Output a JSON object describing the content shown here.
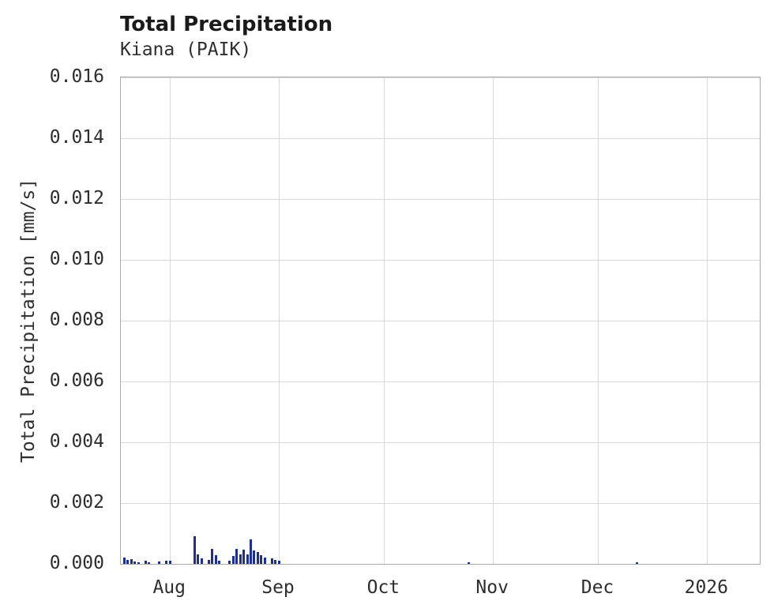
{
  "chart_data": {
    "type": "bar",
    "title": "Total Precipitation",
    "subtitle": "Kiana (PAIK)",
    "xlabel": "",
    "ylabel": "Total Precipitation [mm/s]",
    "ylim": [
      0,
      0.016
    ],
    "yticks": [
      0.0,
      0.002,
      0.004,
      0.006,
      0.008,
      0.01,
      0.012,
      0.014,
      0.016
    ],
    "ytick_decimals": 3,
    "grid": true,
    "legend_position": "none",
    "bar_color": "#1e2f8f",
    "x_domain": [
      "2025-07-18",
      "2026-01-16"
    ],
    "xticks": [
      {
        "date": "2025-08-01",
        "label": "Aug"
      },
      {
        "date": "2025-09-01",
        "label": "Sep"
      },
      {
        "date": "2025-10-01",
        "label": "Oct"
      },
      {
        "date": "2025-11-01",
        "label": "Nov"
      },
      {
        "date": "2025-12-01",
        "label": "Dec"
      },
      {
        "date": "2026-01-01",
        "label": "2026"
      }
    ],
    "bars": [
      [
        "2025-07-19",
        0.0002
      ],
      [
        "2025-07-20",
        0.00012
      ],
      [
        "2025-07-21",
        0.00015
      ],
      [
        "2025-07-22",
        8e-05
      ],
      [
        "2025-07-23",
        6e-05
      ],
      [
        "2025-07-25",
        0.0001
      ],
      [
        "2025-07-26",
        6e-05
      ],
      [
        "2025-07-29",
        8e-05
      ],
      [
        "2025-07-31",
        0.0001
      ],
      [
        "2025-08-01",
        0.0001
      ],
      [
        "2025-08-08",
        0.0009
      ],
      [
        "2025-08-09",
        0.0003
      ],
      [
        "2025-08-10",
        0.00018
      ],
      [
        "2025-08-12",
        0.00012
      ],
      [
        "2025-08-13",
        0.0005
      ],
      [
        "2025-08-14",
        0.00028
      ],
      [
        "2025-08-15",
        0.0001
      ],
      [
        "2025-08-18",
        0.0001
      ],
      [
        "2025-08-19",
        0.00025
      ],
      [
        "2025-08-20",
        0.0005
      ],
      [
        "2025-08-21",
        0.0003
      ],
      [
        "2025-08-22",
        0.00048
      ],
      [
        "2025-08-23",
        0.00032
      ],
      [
        "2025-08-24",
        0.0008
      ],
      [
        "2025-08-25",
        0.00045
      ],
      [
        "2025-08-26",
        0.0004
      ],
      [
        "2025-08-27",
        0.00028
      ],
      [
        "2025-08-28",
        0.0002
      ],
      [
        "2025-08-30",
        0.00018
      ],
      [
        "2025-08-31",
        0.00012
      ],
      [
        "2025-09-01",
        0.0001
      ],
      [
        "2025-10-25",
        5e-05
      ],
      [
        "2025-12-12",
        4e-05
      ]
    ]
  }
}
